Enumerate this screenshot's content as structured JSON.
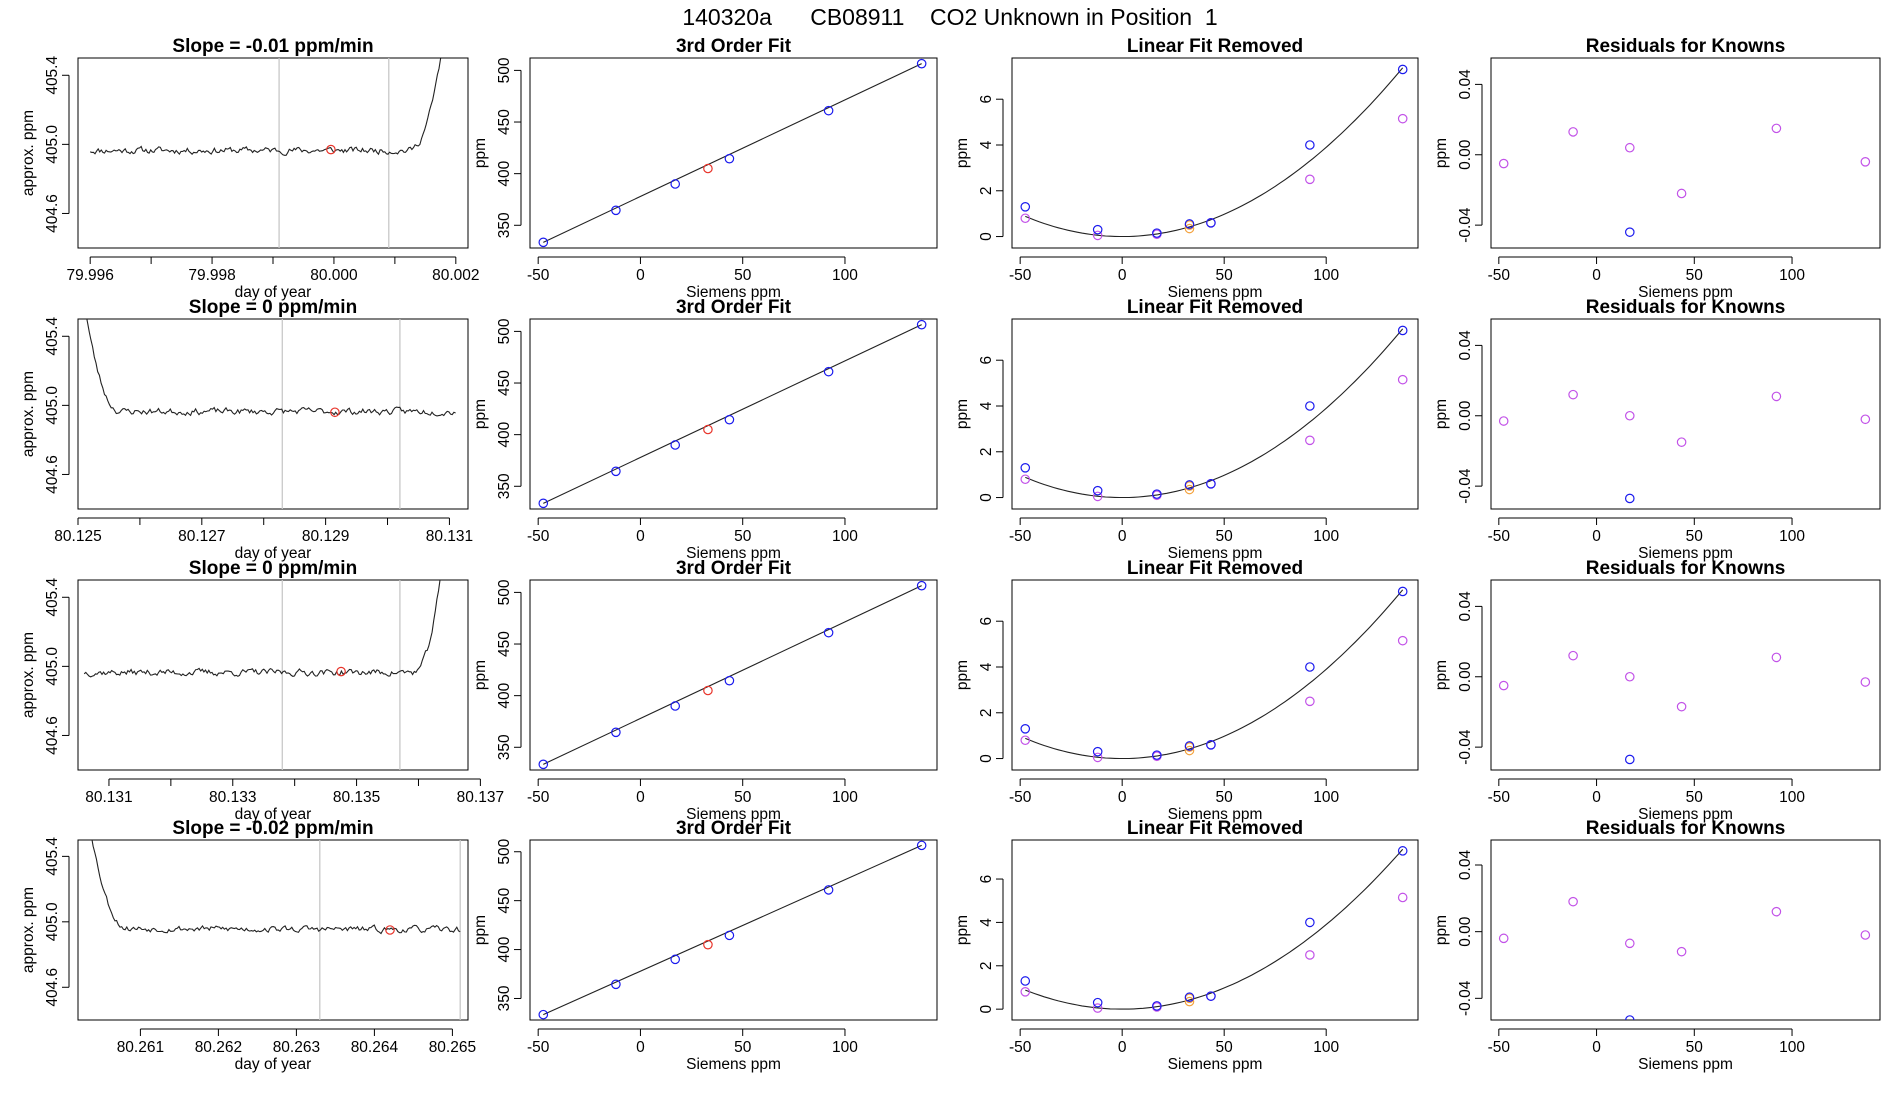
{
  "figure_title": "140320a      CB08911    CO2 Unknown in Position  1",
  "colors": {
    "known": "#1a1aee",
    "unknown": "#e8342a",
    "residual": "#c252e8",
    "orange": "#f4a340",
    "grid": "#c8c8c8",
    "line": "#222222"
  },
  "chart_data": [
    {
      "type": "line",
      "row": 0,
      "panel": "timeseries",
      "title": "Slope =  -0.01  ppm/min",
      "xlabel": "day of year",
      "ylabel": "approx. ppm",
      "xlim": [
        79.9958,
        80.0022
      ],
      "ylim": [
        404.4,
        405.5
      ],
      "xticks": [
        79.996,
        79.998,
        80.0,
        80.002
      ],
      "xtick_labels": [
        "79.996",
        "79.998",
        "80.000",
        "80.002"
      ],
      "minor_xticks": [
        79.997,
        79.999,
        80.001
      ],
      "yticks": [
        404.6,
        405.0,
        405.4
      ],
      "ytick_labels": [
        "404.6",
        "405.0",
        "405.4"
      ],
      "vlines": [
        79.9991,
        80.0009
      ],
      "marker": [
        79.99995,
        404.97
      ],
      "trace": {
        "start": 79.996,
        "flat_end": 80.0012,
        "base": 404.965,
        "noise": 0.02,
        "rise_to": 80.00175,
        "rise_y": 405.5,
        "seed": 11,
        "end": 80.00175
      }
    },
    {
      "type": "scatter",
      "row": 0,
      "panel": "fit3",
      "title": "3rd Order Fit",
      "xlabel": "Siemens ppm",
      "ylabel": "ppm",
      "xlim": [
        -54,
        145
      ],
      "ylim": [
        328,
        512
      ],
      "xticks": [
        -50,
        0,
        50,
        100
      ],
      "xtick_labels": [
        "-50",
        "0",
        "50",
        "100"
      ],
      "yticks": [
        350,
        400,
        450,
        500
      ],
      "ytick_labels": [
        "350",
        "400",
        "450",
        "500"
      ],
      "line": [
        [
          -47.5,
          333.5
        ],
        [
          137.5,
          506.5
        ]
      ],
      "known": [
        [
          -47.5,
          333.5
        ],
        [
          -12,
          364.5
        ],
        [
          17,
          390
        ],
        [
          43.5,
          414.5
        ],
        [
          92,
          461
        ],
        [
          137.5,
          506.5
        ]
      ],
      "unknown": [
        [
          33,
          405
        ]
      ]
    },
    {
      "type": "scatter",
      "row": 0,
      "panel": "linear_removed",
      "title": "Linear Fit Removed",
      "xlabel": "Siemens ppm",
      "ylabel": "ppm",
      "xlim": [
        -54,
        145
      ],
      "ylim": [
        -0.5,
        7.8
      ],
      "xticks": [
        -50,
        0,
        50,
        100
      ],
      "xtick_labels": [
        "-50",
        "0",
        "50",
        "100"
      ],
      "yticks": [
        0,
        2,
        4,
        6
      ],
      "ytick_labels": [
        "0",
        "2",
        "4",
        "6"
      ],
      "curve": {
        "c": 0.00039,
        "from": -47.5,
        "to": 137.5
      },
      "known": [
        [
          -47.5,
          1.3
        ],
        [
          -12,
          0.3
        ],
        [
          17,
          0.15
        ],
        [
          33,
          0.55
        ],
        [
          43.5,
          0.6
        ],
        [
          92,
          4.0
        ],
        [
          137.5,
          7.3
        ]
      ],
      "residual": [
        [
          -47.5,
          0.8
        ],
        [
          -12,
          0.05
        ],
        [
          17,
          0.1
        ],
        [
          43.5,
          0.6
        ],
        [
          92,
          2.5
        ],
        [
          137.5,
          5.15
        ]
      ],
      "orange": [
        [
          33,
          0.35
        ],
        [
          33,
          0.5
        ]
      ]
    },
    {
      "type": "scatter",
      "row": 0,
      "panel": "residuals",
      "title": "Residuals for Knowns",
      "xlabel": "Siemens ppm",
      "ylabel": "ppm",
      "xlim": [
        -54,
        145
      ],
      "ylim": [
        -0.053,
        0.055
      ],
      "xticks": [
        -50,
        0,
        50,
        100
      ],
      "xtick_labels": [
        "-50",
        "0",
        "50",
        "100"
      ],
      "yticks": [
        -0.04,
        0.0,
        0.04
      ],
      "ytick_labels": [
        "-0.04",
        "0.00",
        "0.04"
      ],
      "residual": [
        [
          -47.5,
          -0.005
        ],
        [
          -12,
          0.013
        ],
        [
          17,
          0.004
        ],
        [
          43.5,
          -0.022
        ],
        [
          92,
          0.015
        ],
        [
          137.5,
          -0.004
        ]
      ],
      "known": [
        [
          17,
          -0.044
        ]
      ]
    },
    {
      "type": "line",
      "row": 1,
      "panel": "timeseries",
      "title": "Slope =  0  ppm/min",
      "xlabel": "day of year",
      "ylabel": "approx. ppm",
      "xlim": [
        80.125,
        80.1313
      ],
      "ylim": [
        404.4,
        405.5
      ],
      "xticks": [
        80.125,
        80.127,
        80.129,
        80.131
      ],
      "xtick_labels": [
        "80.125",
        "80.127",
        "80.129",
        "80.131"
      ],
      "minor_xticks": [
        80.126,
        80.128,
        80.13
      ],
      "yticks": [
        404.6,
        405.0,
        405.4
      ],
      "ytick_labels": [
        "404.6",
        "405.0",
        "405.4"
      ],
      "vlines": [
        80.1283,
        80.1302
      ],
      "marker": [
        80.12915,
        404.96
      ],
      "trace": {
        "start": 80.1251,
        "decay_to": 80.1257,
        "decay_from_y": 405.6,
        "base": 404.965,
        "noise": 0.02,
        "seed": 23,
        "end": 80.1311
      }
    },
    {
      "type": "scatter",
      "row": 1,
      "panel": "fit3",
      "title": "3rd Order Fit",
      "xlabel": "Siemens ppm",
      "ylabel": "ppm",
      "xlim": [
        -54,
        145
      ],
      "ylim": [
        328,
        512
      ],
      "xticks": [
        -50,
        0,
        50,
        100
      ],
      "xtick_labels": [
        "-50",
        "0",
        "50",
        "100"
      ],
      "yticks": [
        350,
        400,
        450,
        500
      ],
      "ytick_labels": [
        "350",
        "400",
        "450",
        "500"
      ],
      "line": [
        [
          -47.5,
          333.5
        ],
        [
          137.5,
          506.5
        ]
      ],
      "known": [
        [
          -47.5,
          333.5
        ],
        [
          -12,
          364.5
        ],
        [
          17,
          390
        ],
        [
          43.5,
          414.5
        ],
        [
          92,
          461
        ],
        [
          137.5,
          506.5
        ]
      ],
      "unknown": [
        [
          33,
          405
        ]
      ]
    },
    {
      "type": "scatter",
      "row": 1,
      "panel": "linear_removed",
      "title": "Linear Fit Removed",
      "xlabel": "Siemens ppm",
      "ylabel": "ppm",
      "xlim": [
        -54,
        145
      ],
      "ylim": [
        -0.5,
        7.8
      ],
      "xticks": [
        -50,
        0,
        50,
        100
      ],
      "xtick_labels": [
        "-50",
        "0",
        "50",
        "100"
      ],
      "yticks": [
        0,
        2,
        4,
        6
      ],
      "ytick_labels": [
        "0",
        "2",
        "4",
        "6"
      ],
      "curve": {
        "c": 0.00039,
        "from": -47.5,
        "to": 137.5
      },
      "known": [
        [
          -47.5,
          1.3
        ],
        [
          -12,
          0.3
        ],
        [
          17,
          0.15
        ],
        [
          33,
          0.55
        ],
        [
          43.5,
          0.6
        ],
        [
          92,
          4.0
        ],
        [
          137.5,
          7.3
        ]
      ],
      "residual": [
        [
          -47.5,
          0.8
        ],
        [
          -12,
          0.05
        ],
        [
          17,
          0.1
        ],
        [
          43.5,
          0.6
        ],
        [
          92,
          2.5
        ],
        [
          137.5,
          5.15
        ]
      ],
      "orange": [
        [
          33,
          0.35
        ],
        [
          33,
          0.5
        ]
      ]
    },
    {
      "type": "scatter",
      "row": 1,
      "panel": "residuals",
      "title": "Residuals for Knowns",
      "xlabel": "Siemens ppm",
      "ylabel": "ppm",
      "xlim": [
        -54,
        145
      ],
      "ylim": [
        -0.053,
        0.055
      ],
      "xticks": [
        -50,
        0,
        50,
        100
      ],
      "xtick_labels": [
        "-50",
        "0",
        "50",
        "100"
      ],
      "yticks": [
        -0.04,
        0.0,
        0.04
      ],
      "ytick_labels": [
        "-0.04",
        "0.00",
        "0.04"
      ],
      "residual": [
        [
          -47.5,
          -0.003
        ],
        [
          -12,
          0.012
        ],
        [
          17,
          0.0
        ],
        [
          43.5,
          -0.015
        ],
        [
          92,
          0.011
        ],
        [
          137.5,
          -0.002
        ]
      ],
      "known": [
        [
          17,
          -0.047
        ]
      ]
    },
    {
      "type": "line",
      "row": 2,
      "panel": "timeseries",
      "title": "Slope =  0  ppm/min",
      "xlabel": "day of year",
      "ylabel": "approx. ppm",
      "xlim": [
        80.1305,
        80.1368
      ],
      "ylim": [
        404.4,
        405.5
      ],
      "xticks": [
        80.131,
        80.133,
        80.135,
        80.137
      ],
      "xtick_labels": [
        "80.131",
        "80.133",
        "80.135",
        "80.137"
      ],
      "minor_xticks": [
        80.132,
        80.134,
        80.136
      ],
      "yticks": [
        404.6,
        405.0,
        405.4
      ],
      "ytick_labels": [
        "404.6",
        "405.0",
        "405.4"
      ],
      "vlines": [
        80.1338,
        80.1357
      ],
      "marker": [
        80.13475,
        404.97
      ],
      "trace": {
        "start": 80.1306,
        "flat_end": 80.1359,
        "base": 404.965,
        "noise": 0.02,
        "rise_to": 80.13635,
        "rise_y": 405.5,
        "seed": 37,
        "end": 80.13635
      }
    },
    {
      "type": "scatter",
      "row": 2,
      "panel": "fit3",
      "title": "3rd Order Fit",
      "xlabel": "Siemens ppm",
      "ylabel": "ppm",
      "xlim": [
        -54,
        145
      ],
      "ylim": [
        328,
        512
      ],
      "xticks": [
        -50,
        0,
        50,
        100
      ],
      "xtick_labels": [
        "-50",
        "0",
        "50",
        "100"
      ],
      "yticks": [
        350,
        400,
        450,
        500
      ],
      "ytick_labels": [
        "350",
        "400",
        "450",
        "500"
      ],
      "line": [
        [
          -47.5,
          333.5
        ],
        [
          137.5,
          506.5
        ]
      ],
      "known": [
        [
          -47.5,
          333.5
        ],
        [
          -12,
          364.5
        ],
        [
          17,
          390
        ],
        [
          43.5,
          414.5
        ],
        [
          92,
          461
        ],
        [
          137.5,
          506.5
        ]
      ],
      "unknown": [
        [
          33,
          405
        ]
      ]
    },
    {
      "type": "scatter",
      "row": 2,
      "panel": "linear_removed",
      "title": "Linear Fit Removed",
      "xlabel": "Siemens ppm",
      "ylabel": "ppm",
      "xlim": [
        -54,
        145
      ],
      "ylim": [
        -0.5,
        7.8
      ],
      "xticks": [
        -50,
        0,
        50,
        100
      ],
      "xtick_labels": [
        "-50",
        "0",
        "50",
        "100"
      ],
      "yticks": [
        0,
        2,
        4,
        6
      ],
      "ytick_labels": [
        "0",
        "2",
        "4",
        "6"
      ],
      "curve": {
        "c": 0.00039,
        "from": -47.5,
        "to": 137.5
      },
      "known": [
        [
          -47.5,
          1.3
        ],
        [
          -12,
          0.3
        ],
        [
          17,
          0.15
        ],
        [
          33,
          0.55
        ],
        [
          43.5,
          0.6
        ],
        [
          92,
          4.0
        ],
        [
          137.5,
          7.3
        ]
      ],
      "residual": [
        [
          -47.5,
          0.8
        ],
        [
          -12,
          0.05
        ],
        [
          17,
          0.1
        ],
        [
          43.5,
          0.6
        ],
        [
          92,
          2.5
        ],
        [
          137.5,
          5.15
        ]
      ],
      "orange": [
        [
          33,
          0.35
        ],
        [
          33,
          0.5
        ]
      ]
    },
    {
      "type": "scatter",
      "row": 2,
      "panel": "residuals",
      "title": "Residuals for Knowns",
      "xlabel": "Siemens ppm",
      "ylabel": "ppm",
      "xlim": [
        -54,
        145
      ],
      "ylim": [
        -0.053,
        0.055
      ],
      "xticks": [
        -50,
        0,
        50,
        100
      ],
      "xtick_labels": [
        "-50",
        "0",
        "50",
        "100"
      ],
      "yticks": [
        -0.04,
        0.0,
        0.04
      ],
      "ytick_labels": [
        "-0.04",
        "0.00",
        "0.04"
      ],
      "residual": [
        [
          -47.5,
          -0.005
        ],
        [
          -12,
          0.012
        ],
        [
          17,
          0.0
        ],
        [
          43.5,
          -0.017
        ],
        [
          92,
          0.011
        ],
        [
          137.5,
          -0.003
        ]
      ],
      "known": [
        [
          17,
          -0.047
        ]
      ]
    },
    {
      "type": "line",
      "row": 3,
      "panel": "timeseries",
      "title": "Slope =  -0.02  ppm/min",
      "xlabel": "day of year",
      "ylabel": "approx. ppm",
      "xlim": [
        80.2602,
        80.2652
      ],
      "ylim": [
        404.4,
        405.5
      ],
      "xticks": [
        80.261,
        80.262,
        80.263,
        80.264,
        80.265
      ],
      "xtick_labels": [
        "80.261",
        "80.262",
        "80.263",
        "80.264",
        "80.265"
      ],
      "minor_xticks": [],
      "yticks": [
        404.6,
        405.0,
        405.4
      ],
      "ytick_labels": [
        "404.6",
        "405.0",
        "405.4"
      ],
      "vlines": [
        80.2633,
        80.2651
      ],
      "marker": [
        80.2642,
        404.95
      ],
      "trace": {
        "start": 80.26035,
        "decay_to": 80.26085,
        "decay_from_y": 405.6,
        "base": 404.96,
        "noise": 0.02,
        "slope": -0.008,
        "seed": 53,
        "end": 80.2651
      }
    },
    {
      "type": "scatter",
      "row": 3,
      "panel": "fit3",
      "title": "3rd Order Fit",
      "xlabel": "Siemens ppm",
      "ylabel": "ppm",
      "xlim": [
        -54,
        145
      ],
      "ylim": [
        328,
        512
      ],
      "xticks": [
        -50,
        0,
        50,
        100
      ],
      "xtick_labels": [
        "-50",
        "0",
        "50",
        "100"
      ],
      "yticks": [
        350,
        400,
        450,
        500
      ],
      "ytick_labels": [
        "350",
        "400",
        "450",
        "500"
      ],
      "line": [
        [
          -47.5,
          333.5
        ],
        [
          137.5,
          506.5
        ]
      ],
      "known": [
        [
          -47.5,
          333.5
        ],
        [
          -12,
          364.5
        ],
        [
          17,
          390
        ],
        [
          43.5,
          414.5
        ],
        [
          92,
          461
        ],
        [
          137.5,
          506.5
        ]
      ],
      "unknown": [
        [
          33,
          405
        ]
      ]
    },
    {
      "type": "scatter",
      "row": 3,
      "panel": "linear_removed",
      "title": "Linear Fit Removed",
      "xlabel": "Siemens ppm",
      "ylabel": "ppm",
      "xlim": [
        -54,
        145
      ],
      "ylim": [
        -0.5,
        7.8
      ],
      "xticks": [
        -50,
        0,
        50,
        100
      ],
      "xtick_labels": [
        "-50",
        "0",
        "50",
        "100"
      ],
      "yticks": [
        0,
        2,
        4,
        6
      ],
      "ytick_labels": [
        "0",
        "2",
        "4",
        "6"
      ],
      "curve": {
        "c": 0.00039,
        "from": -47.5,
        "to": 137.5
      },
      "known": [
        [
          -47.5,
          1.3
        ],
        [
          -12,
          0.3
        ],
        [
          17,
          0.15
        ],
        [
          33,
          0.55
        ],
        [
          43.5,
          0.6
        ],
        [
          92,
          4.0
        ],
        [
          137.5,
          7.3
        ]
      ],
      "residual": [
        [
          -47.5,
          0.8
        ],
        [
          -12,
          0.05
        ],
        [
          17,
          0.1
        ],
        [
          43.5,
          0.6
        ],
        [
          92,
          2.5
        ],
        [
          137.5,
          5.15
        ]
      ],
      "orange": [
        [
          33,
          0.35
        ],
        [
          33,
          0.5
        ]
      ]
    },
    {
      "type": "scatter",
      "row": 3,
      "panel": "residuals",
      "title": "Residuals for Knowns",
      "xlabel": "Siemens ppm",
      "ylabel": "ppm",
      "xlim": [
        -54,
        145
      ],
      "ylim": [
        -0.053,
        0.055
      ],
      "xticks": [
        -50,
        0,
        50,
        100
      ],
      "xtick_labels": [
        "-50",
        "0",
        "50",
        "100"
      ],
      "yticks": [
        -0.04,
        0.0,
        0.04
      ],
      "ytick_labels": [
        "-0.04",
        "0.00",
        "0.04"
      ],
      "residual": [
        [
          -47.5,
          -0.004
        ],
        [
          -12,
          0.018
        ],
        [
          17,
          -0.007
        ],
        [
          43.5,
          -0.012
        ],
        [
          92,
          0.012
        ],
        [
          137.5,
          -0.002
        ]
      ],
      "known": [
        [
          17,
          -0.053
        ]
      ]
    }
  ]
}
